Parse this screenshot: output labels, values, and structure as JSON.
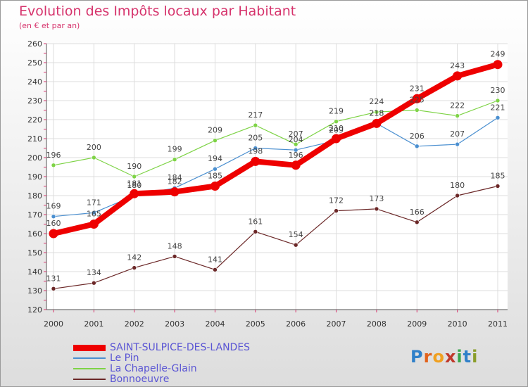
{
  "header": {
    "title": "Evolution des Impôts locaux par Habitant",
    "subtitle": "(en € et par an)"
  },
  "logo": {
    "letters": [
      "P",
      "r",
      "o",
      "x",
      "i",
      "t",
      "i"
    ],
    "colors": [
      "#2f80c9",
      "#e2621b",
      "#f0a020",
      "#c0392b",
      "#3aa64d",
      "#2f80c9",
      "#8a9d2a"
    ]
  },
  "chart_data": {
    "type": "line",
    "title": "Evolution des Impôts locaux par Habitant",
    "subtitle": "(en € et par an)",
    "x": [
      "2000",
      "2001",
      "2002",
      "2003",
      "2004",
      "2005",
      "2006",
      "2007",
      "2008",
      "2009",
      "2010",
      "2011"
    ],
    "ylim": [
      120,
      260
    ],
    "yticks": [
      120,
      130,
      140,
      150,
      160,
      170,
      180,
      190,
      200,
      210,
      220,
      230,
      240,
      250,
      260
    ],
    "grid": true,
    "legend_position": "bottom-left",
    "series": [
      {
        "name": "SAINT-SULPICE-DES-LANDES",
        "color": "#ee0000",
        "values": [
          160,
          165,
          181,
          182,
          185,
          198,
          196,
          210,
          218,
          231,
          243,
          249
        ]
      },
      {
        "name": "Le Pin",
        "color": "#4a8fd0",
        "values": [
          169,
          171,
          180,
          184,
          194,
          205,
          204,
          209,
          218,
          206,
          207,
          221
        ]
      },
      {
        "name": "La Chapelle-Glain",
        "color": "#7ed346",
        "values": [
          196,
          200,
          190,
          199,
          209,
          217,
          207,
          219,
          224,
          225,
          222,
          230
        ]
      },
      {
        "name": "Bonnoeuvre",
        "color": "#6b2727",
        "values": [
          131,
          134,
          142,
          148,
          141,
          161,
          154,
          172,
          173,
          166,
          180,
          185
        ]
      }
    ]
  }
}
